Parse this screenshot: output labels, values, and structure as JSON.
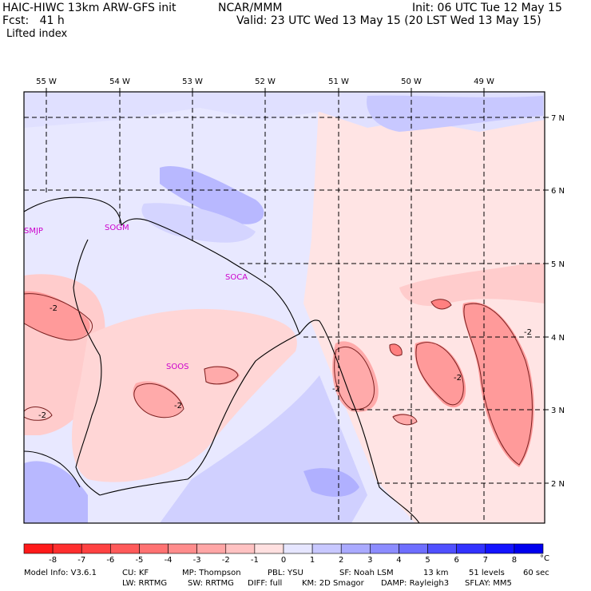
{
  "header": {
    "model": "HAIC-HIWC 13km ARW-GFS init",
    "org": "NCAR/MMM",
    "init": "Init: 06 UTC Tue 12 May 15",
    "fcst": "Fcst:   41 h",
    "valid": "Valid: 23 UTC Wed 13 May 15 (20 LST Wed 13 May 15)",
    "field": "Lifted index"
  },
  "map": {
    "lon_labels": [
      "55 W",
      "54 W",
      "53 W",
      "52 W",
      "51 W",
      "50 W",
      "49 W"
    ],
    "lat_labels": [
      "7 N",
      "6 N",
      "5 N",
      "4 N",
      "3 N",
      "2 N"
    ],
    "stations": [
      "SMJP",
      "SOGM",
      "SOCA",
      "SOOS"
    ],
    "contour_labels": [
      "-2",
      "-2",
      "-2",
      "-2",
      "-2",
      "-2"
    ]
  },
  "colorbar": {
    "ticks": [
      "-8",
      "-7",
      "-6",
      "-5",
      "-4",
      "-3",
      "-2",
      "-1",
      "0",
      "1",
      "2",
      "3",
      "4",
      "5",
      "6",
      "7",
      "8"
    ],
    "unit": "°C",
    "colors": [
      "#ff1a1a",
      "#ff2e2e",
      "#ff4242",
      "#ff5a5a",
      "#ff7272",
      "#ff8c8c",
      "#ffa6a6",
      "#ffc2c2",
      "#ffe0e0",
      "#e6e6ff",
      "#c8c8ff",
      "#aaaaff",
      "#8c8cff",
      "#6e6eff",
      "#5050ff",
      "#3232ff",
      "#1414ff",
      "#0000ee"
    ]
  },
  "footer": {
    "line1": [
      "Model Info: V3.6.1",
      "CU: KF",
      "MP: Thompson",
      "PBL: YSU",
      "SF: Noah LSM",
      "13 km",
      "51 levels",
      "60 sec"
    ],
    "line2": [
      "LW: RRTMG",
      "SW: RRTMG",
      "DIFF: full",
      "KM: 2D Smagor",
      "DAMP: Rayleigh3",
      "SFLAY: MM5"
    ]
  }
}
